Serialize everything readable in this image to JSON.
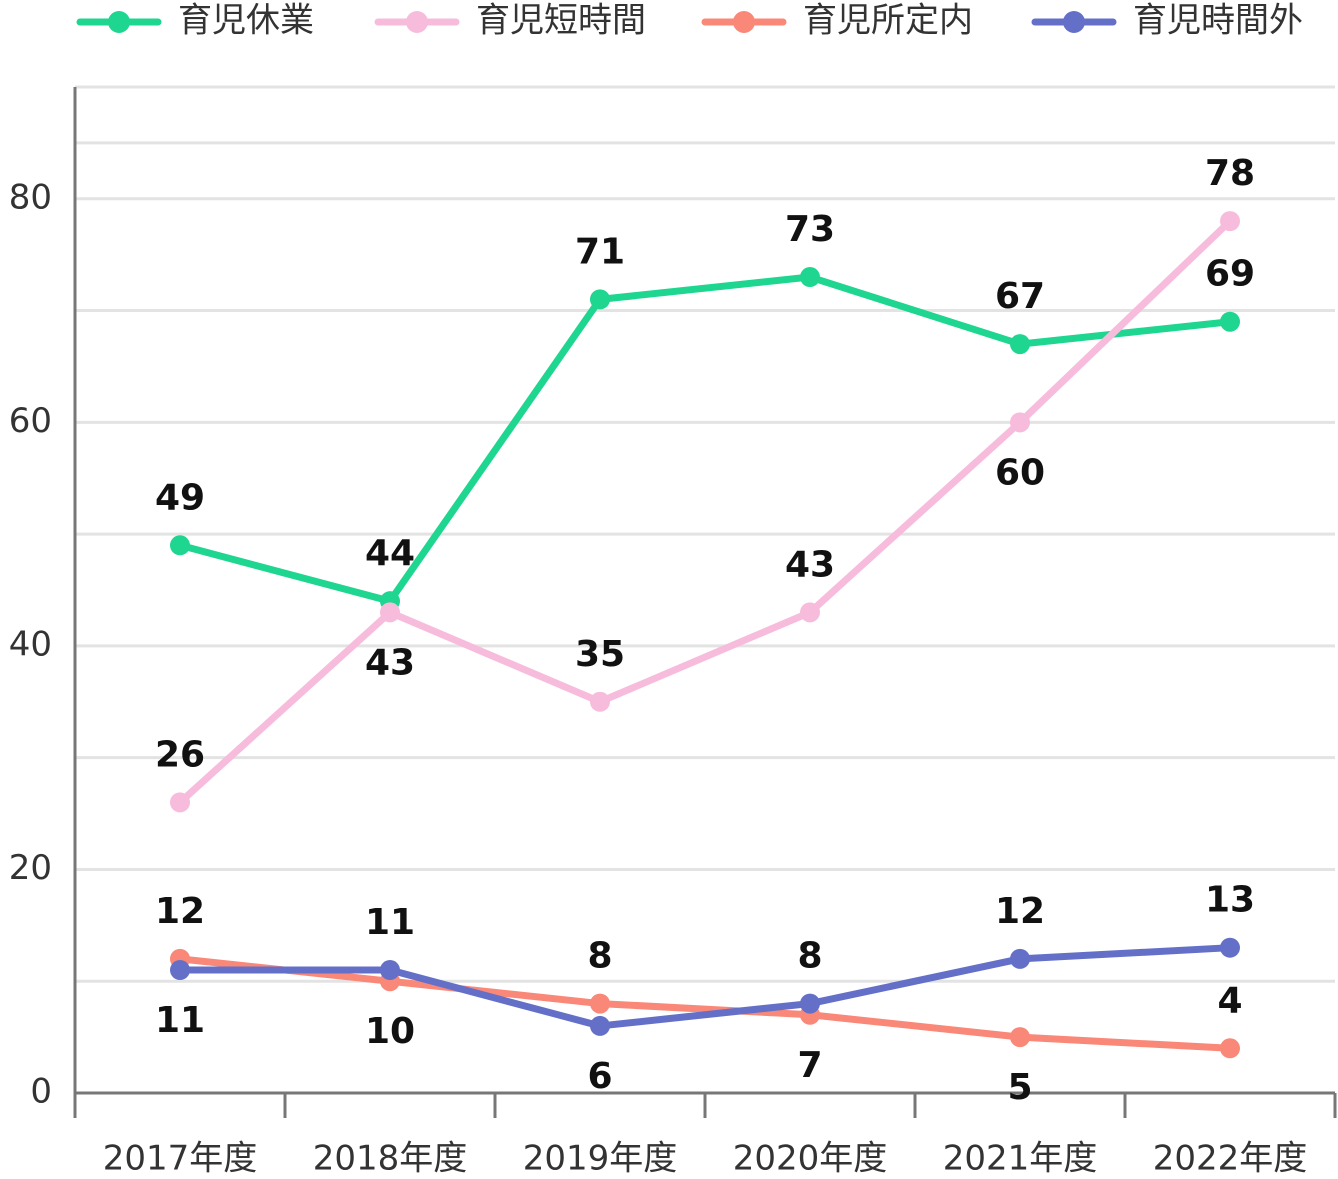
{
  "chart_data": {
    "type": "line",
    "categories": [
      "2017年度",
      "2018年度",
      "2019年度",
      "2020年度",
      "2021年度",
      "2022年度"
    ],
    "series": [
      {
        "name": "育児休業",
        "color": "#1ed68f",
        "values": [
          49,
          44,
          71,
          73,
          67,
          69
        ]
      },
      {
        "name": "育児短時間",
        "color": "#f7bcdc",
        "values": [
          26,
          43,
          35,
          43,
          60,
          78
        ]
      },
      {
        "name": "育児所定内",
        "color": "#f98878",
        "values": [
          12,
          10,
          8,
          7,
          5,
          4
        ]
      },
      {
        "name": "育児時間外",
        "color": "#6470c8",
        "values": [
          11,
          11,
          6,
          8,
          12,
          13
        ]
      }
    ],
    "ylim": [
      0,
      90
    ],
    "yticks": [
      0,
      20,
      40,
      60,
      80
    ],
    "grid": true,
    "legend": "top"
  }
}
